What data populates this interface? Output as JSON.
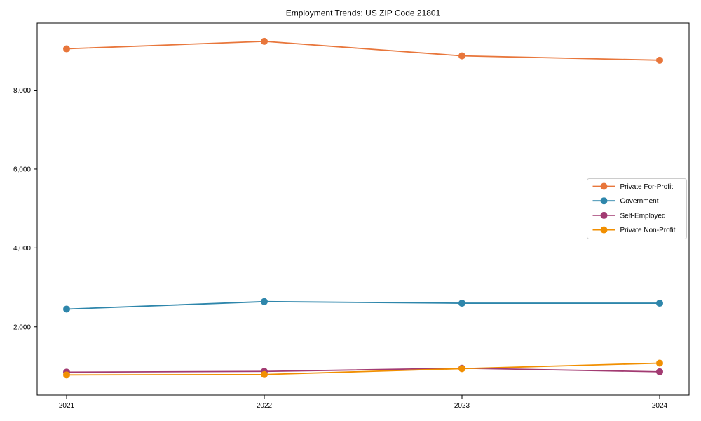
{
  "chart_data": {
    "type": "line",
    "title": "Employment Trends: US ZIP Code 21801",
    "x": [
      "2021",
      "2022",
      "2023",
      "2024"
    ],
    "series": [
      {
        "name": "Private For-Profit",
        "color": "#E8763B",
        "values": [
          9050,
          9240,
          8870,
          8760
        ]
      },
      {
        "name": "Government",
        "color": "#2E86AB",
        "values": [
          2450,
          2640,
          2600,
          2600
        ]
      },
      {
        "name": "Self-Employed",
        "color": "#A23B72",
        "values": [
          850,
          870,
          950,
          860
        ]
      },
      {
        "name": "Private Non-Profit",
        "color": "#F18F01",
        "values": [
          780,
          790,
          940,
          1080
        ]
      }
    ],
    "ylim": [
      270,
      9700
    ],
    "yticks": [
      2000,
      4000,
      6000,
      8000
    ],
    "ytick_labels": [
      "2,000",
      "4,000",
      "6,000",
      "8,000"
    ],
    "xlabel": "",
    "ylabel": "",
    "grid": false,
    "legend_position": "center right",
    "marker": "circle",
    "axis_color": "#000000",
    "legend_border_color": "#cccccc",
    "background_color": "#ffffff"
  }
}
